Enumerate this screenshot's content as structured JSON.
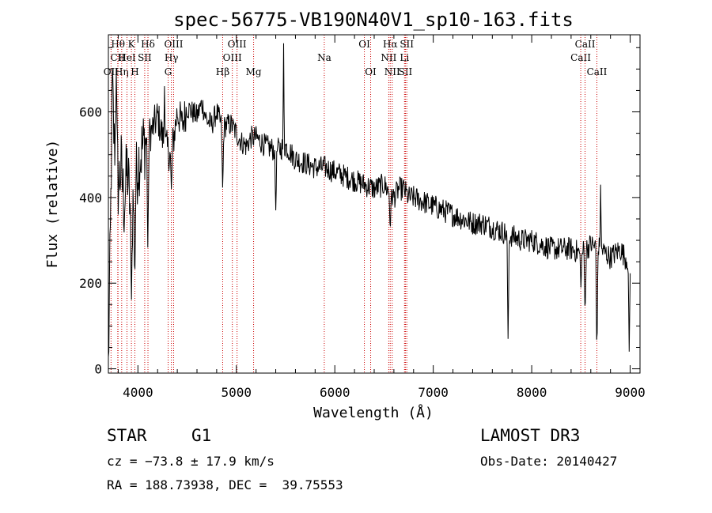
{
  "chart_data": {
    "type": "line",
    "title": "spec-56775-VB190N40V1_sp10-163.fits",
    "xlabel": "Wavelength (Å)",
    "ylabel": "Flux (relative)",
    "xlim": [
      3700,
      9100
    ],
    "ylim": [
      -10,
      780
    ],
    "xticks": [
      4000,
      5000,
      6000,
      7000,
      8000,
      9000
    ],
    "yticks": [
      0,
      200,
      400,
      600
    ],
    "series": [
      {
        "name": "flux",
        "anchors_x": [
          3700,
          3720,
          3740,
          3760,
          3780,
          3800,
          3830,
          3860,
          3890,
          3930,
          3970,
          4000,
          4050,
          4100,
          4150,
          4200,
          4250,
          4300,
          4340,
          4400,
          4450,
          4500,
          4550,
          4600,
          4650,
          4700,
          4750,
          4800,
          4861,
          4900,
          4950,
          5000,
          5050,
          5100,
          5150,
          5200,
          5300,
          5400,
          5500,
          5600,
          5700,
          5800,
          5900,
          6000,
          6100,
          6200,
          6300,
          6400,
          6500,
          6563,
          6600,
          6650,
          6700,
          6750,
          6800,
          6900,
          7000,
          7100,
          7200,
          7300,
          7400,
          7500,
          7600,
          7700,
          7800,
          7900,
          8000,
          8100,
          8200,
          8300,
          8400,
          8500,
          8600,
          8700,
          8800,
          8900,
          8950,
          9000
        ],
        "anchors_y": [
          0,
          300,
          660,
          520,
          560,
          430,
          470,
          380,
          470,
          350,
          420,
          480,
          520,
          540,
          560,
          590,
          540,
          510,
          500,
          600,
          570,
          610,
          600,
          590,
          620,
          580,
          570,
          600,
          560,
          570,
          570,
          550,
          530,
          520,
          540,
          540,
          520,
          510,
          520,
          490,
          480,
          470,
          470,
          460,
          450,
          440,
          430,
          420,
          430,
          410,
          400,
          420,
          420,
          400,
          400,
          390,
          380,
          370,
          360,
          350,
          340,
          340,
          330,
          320,
          310,
          300,
          300,
          290,
          280,
          280,
          280,
          270,
          290,
          280,
          260,
          280,
          260,
          250
        ],
        "dips": [
          {
            "x": 3934,
            "y": 150
          },
          {
            "x": 3968,
            "y": 200
          },
          {
            "x": 4101,
            "y": 260
          },
          {
            "x": 4340,
            "y": 420
          },
          {
            "x": 4861,
            "y": 410
          },
          {
            "x": 5400,
            "y": 370
          },
          {
            "x": 6563,
            "y": 320
          },
          {
            "x": 7760,
            "y": 70
          },
          {
            "x": 8500,
            "y": 190
          },
          {
            "x": 8542,
            "y": 120
          },
          {
            "x": 8662,
            "y": 25
          },
          {
            "x": 8990,
            "y": 40
          }
        ],
        "spikes": [
          {
            "x": 3780,
            "y": 700
          },
          {
            "x": 4270,
            "y": 660
          },
          {
            "x": 5480,
            "y": 760
          },
          {
            "x": 8700,
            "y": 430
          }
        ]
      }
    ],
    "lines": [
      {
        "label": "Hθ",
        "x": 3798,
        "row": 0
      },
      {
        "label": "CII",
        "x": 3795,
        "row": 1
      },
      {
        "label": "OII",
        "x": 3727,
        "row": 2
      },
      {
        "label": "Hη",
        "x": 3835,
        "row": 2
      },
      {
        "label": "HeI",
        "x": 3889,
        "row": 1
      },
      {
        "label": "K",
        "x": 3934,
        "row": 0
      },
      {
        "label": "H",
        "x": 3969,
        "row": 2
      },
      {
        "label": "SII",
        "x": 4069,
        "row": 1
      },
      {
        "label": "Hδ",
        "x": 4102,
        "row": 0
      },
      {
        "label": "OIII",
        "x": 4363,
        "row": 0
      },
      {
        "label": "Hγ",
        "x": 4340,
        "row": 1
      },
      {
        "label": "G",
        "x": 4307,
        "row": 2
      },
      {
        "label": "Hβ",
        "x": 4861,
        "row": 2
      },
      {
        "label": "OIII",
        "x": 4959,
        "row": 1
      },
      {
        "label": "OIII",
        "x": 5007,
        "row": 0
      },
      {
        "label": "Mg",
        "x": 5175,
        "row": 2
      },
      {
        "label": "Na",
        "x": 5893,
        "row": 1
      },
      {
        "label": "OI",
        "x": 6300,
        "row": 0
      },
      {
        "label": "OI",
        "x": 6364,
        "row": 2
      },
      {
        "label": "NII",
        "x": 6548,
        "row": 1
      },
      {
        "label": "Hα",
        "x": 6563,
        "row": 0
      },
      {
        "label": "NII",
        "x": 6583,
        "row": 2
      },
      {
        "label": "Li",
        "x": 6708,
        "row": 1
      },
      {
        "label": "SII",
        "x": 6717,
        "row": 2
      },
      {
        "label": "SII",
        "x": 6731,
        "row": 0
      },
      {
        "label": "CaII",
        "x": 8498,
        "row": 1
      },
      {
        "label": "CaII",
        "x": 8542,
        "row": 0
      },
      {
        "label": "CaII",
        "x": 8662,
        "row": 2
      }
    ],
    "line_color": "#cc0000",
    "curve_color": "#000000"
  },
  "info": {
    "object_class": "STAR",
    "subclass": "G1",
    "survey": "LAMOST DR3",
    "cz": "cz = −73.8 ± 17.9 km/s",
    "obs_date": "Obs-Date: 20140427",
    "coords": "RA = 188.73938, DEC =  39.75553"
  }
}
